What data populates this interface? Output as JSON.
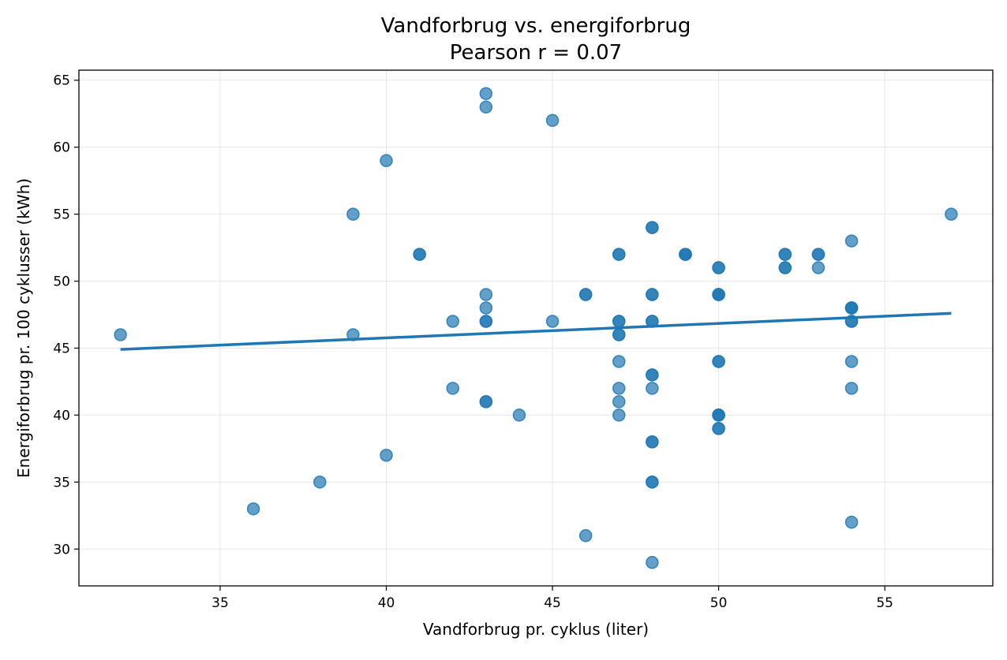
{
  "chart_data": {
    "type": "scatter",
    "title": "Vandforbrug vs. energiforbrug",
    "subtitle": "Pearson r = 0.07",
    "xlabel": "Vandforbrug pr. cyklus (liter)",
    "ylabel": "Energiforbrug pr. 100 cyklusser (kWh)",
    "xlim": [
      30.75,
      58.25
    ],
    "ylim": [
      27.25,
      65.75
    ],
    "xticks": [
      35,
      40,
      45,
      50,
      55
    ],
    "yticks": [
      30,
      35,
      40,
      45,
      50,
      55,
      60,
      65
    ],
    "grid": true,
    "point_color": "#1f77b4",
    "point_opacity": 0.7,
    "trendline": {
      "color": "#1f77b4",
      "x": [
        32,
        57
      ],
      "y": [
        44.9,
        47.6
      ]
    },
    "points": [
      [
        32,
        46
      ],
      [
        36,
        33
      ],
      [
        38,
        35
      ],
      [
        39,
        55
      ],
      [
        39,
        46
      ],
      [
        40,
        59
      ],
      [
        40,
        37
      ],
      [
        41,
        52
      ],
      [
        41,
        52
      ],
      [
        42,
        47
      ],
      [
        42,
        42
      ],
      [
        43,
        64
      ],
      [
        43,
        63
      ],
      [
        43,
        49
      ],
      [
        43,
        48
      ],
      [
        43,
        47
      ],
      [
        43,
        47
      ],
      [
        43,
        41
      ],
      [
        43,
        41
      ],
      [
        44,
        40
      ],
      [
        45,
        62
      ],
      [
        45,
        47
      ],
      [
        46,
        49
      ],
      [
        46,
        49
      ],
      [
        46,
        31
      ],
      [
        47,
        52
      ],
      [
        47,
        52
      ],
      [
        47,
        47
      ],
      [
        47,
        47
      ],
      [
        47,
        46
      ],
      [
        47,
        46
      ],
      [
        47,
        44
      ],
      [
        47,
        42
      ],
      [
        47,
        41
      ],
      [
        47,
        40
      ],
      [
        48,
        54
      ],
      [
        48,
        54
      ],
      [
        48,
        49
      ],
      [
        48,
        49
      ],
      [
        48,
        47
      ],
      [
        48,
        47
      ],
      [
        48,
        43
      ],
      [
        48,
        43
      ],
      [
        48,
        42
      ],
      [
        48,
        38
      ],
      [
        48,
        38
      ],
      [
        48,
        35
      ],
      [
        48,
        35
      ],
      [
        48,
        29
      ],
      [
        49,
        52
      ],
      [
        49,
        52
      ],
      [
        49,
        52
      ],
      [
        50,
        51
      ],
      [
        50,
        51
      ],
      [
        50,
        49
      ],
      [
        50,
        49
      ],
      [
        50,
        49
      ],
      [
        50,
        44
      ],
      [
        50,
        44
      ],
      [
        50,
        40
      ],
      [
        50,
        40
      ],
      [
        50,
        40
      ],
      [
        50,
        39
      ],
      [
        50,
        39
      ],
      [
        52,
        52
      ],
      [
        52,
        52
      ],
      [
        52,
        51
      ],
      [
        52,
        51
      ],
      [
        53,
        52
      ],
      [
        53,
        52
      ],
      [
        53,
        51
      ],
      [
        54,
        53
      ],
      [
        54,
        48
      ],
      [
        54,
        48
      ],
      [
        54,
        48
      ],
      [
        54,
        47
      ],
      [
        54,
        47
      ],
      [
        54,
        44
      ],
      [
        54,
        42
      ],
      [
        54,
        32
      ],
      [
        57,
        55
      ]
    ]
  }
}
